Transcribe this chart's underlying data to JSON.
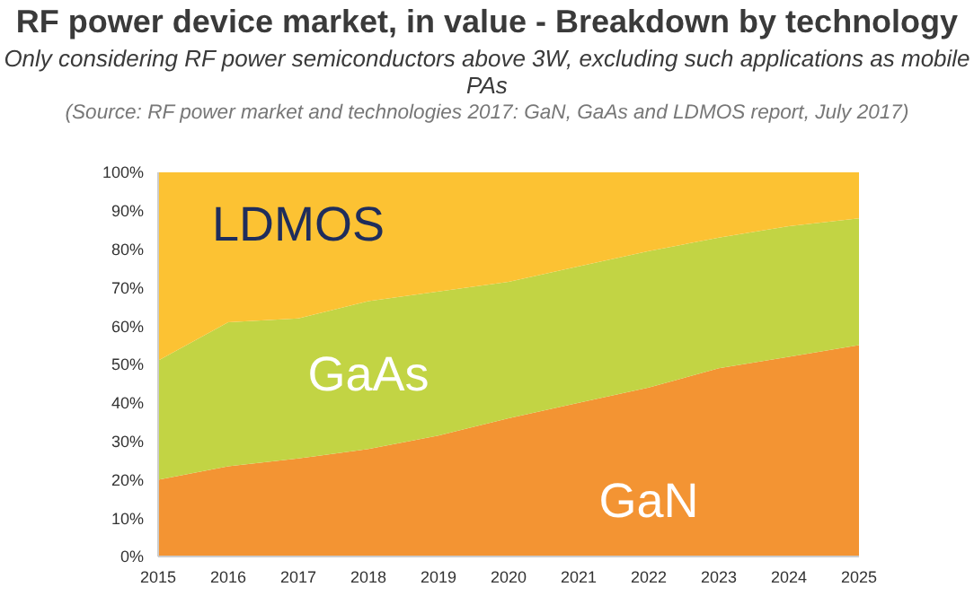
{
  "chart_data": {
    "type": "area",
    "title": "RF power device market, in value - Breakdown by technology",
    "subtitle": "Only considering RF power semiconductors above 3W, excluding such applications as mobile PAs",
    "annotations": [
      "(Source: RF power market and technologies 2017: GaN, GaAs and LDMOS report, July 2017)"
    ],
    "stacked": true,
    "x": [
      2015,
      2016,
      2017,
      2018,
      2019,
      2020,
      2021,
      2022,
      2023,
      2024,
      2025
    ],
    "series": [
      {
        "name": "GaN",
        "color": "#f39433",
        "values": [
          20,
          23.5,
          25.5,
          28,
          31.5,
          36,
          40,
          44,
          49,
          52,
          55
        ]
      },
      {
        "name": "GaAs",
        "color": "#c2d444",
        "values": [
          31,
          37.5,
          36.5,
          38.5,
          37.5,
          35.5,
          35.5,
          35.5,
          34,
          34,
          33
        ]
      },
      {
        "name": "LDMOS",
        "color": "#fcc233",
        "values": [
          49,
          39,
          38,
          33.5,
          31,
          28.5,
          24.5,
          20.5,
          17,
          14,
          12
        ]
      }
    ],
    "xlim": [
      2015,
      2025
    ],
    "xticks": [
      2015,
      2016,
      2017,
      2018,
      2019,
      2020,
      2021,
      2022,
      2023,
      2024,
      2025
    ],
    "ylim": [
      0,
      100
    ],
    "yticks": [
      {
        "value": 0,
        "label": "0%"
      },
      {
        "value": 10,
        "label": "10%"
      },
      {
        "value": 20,
        "label": "20%"
      },
      {
        "value": 30,
        "label": "30%"
      },
      {
        "value": 40,
        "label": "40%"
      },
      {
        "value": 50,
        "label": "50%"
      },
      {
        "value": 60,
        "label": "60%"
      },
      {
        "value": 70,
        "label": "70%"
      },
      {
        "value": 80,
        "label": "80%"
      },
      {
        "value": 90,
        "label": "90%"
      },
      {
        "value": 100,
        "label": "100%"
      }
    ]
  }
}
